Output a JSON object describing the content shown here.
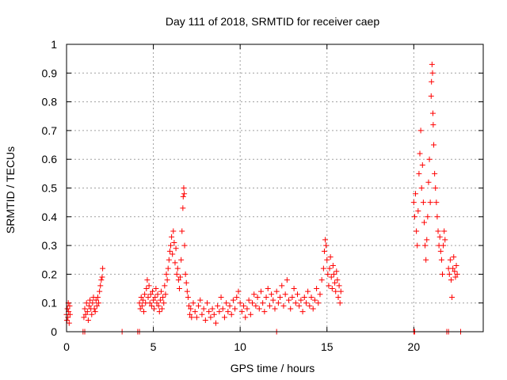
{
  "chart_data": {
    "type": "scatter",
    "title": "Day 111 of 2018, SRMTID for receiver caep",
    "xlabel": "GPS time / hours",
    "ylabel": "SRMTID / TECUs",
    "xlim": [
      0,
      24
    ],
    "ylim": [
      0,
      1
    ],
    "xticks": [
      0,
      5,
      10,
      15,
      20
    ],
    "xtick_labels": [
      "0",
      "5",
      "10",
      "15",
      "20"
    ],
    "yticks": [
      0,
      0.1,
      0.2,
      0.3,
      0.4,
      0.5,
      0.6,
      0.7,
      0.8,
      0.9,
      1
    ],
    "ytick_labels": [
      "0",
      "0.1",
      "0.2",
      "0.3",
      "0.4",
      "0.5",
      "0.6",
      "0.7",
      "0.8",
      "0.9",
      "1"
    ],
    "grid": true,
    "marker": "+",
    "color": "#ff0000",
    "series": [
      {
        "name": "SRMTID",
        "points": [
          [
            0.0,
            0.06
          ],
          [
            0.02,
            0.04
          ],
          [
            0.05,
            0.08
          ],
          [
            0.08,
            0.05
          ],
          [
            0.1,
            0.1
          ],
          [
            0.12,
            0.07
          ],
          [
            0.15,
            0.03
          ],
          [
            0.18,
            0.09
          ],
          [
            0.2,
            0.06
          ],
          [
            0.95,
            0.0
          ],
          [
            1.05,
            0.0
          ],
          [
            1.0,
            0.05
          ],
          [
            1.05,
            0.08
          ],
          [
            1.1,
            0.06
          ],
          [
            1.15,
            0.1
          ],
          [
            1.2,
            0.07
          ],
          [
            1.25,
            0.04
          ],
          [
            1.3,
            0.09
          ],
          [
            1.35,
            0.11
          ],
          [
            1.4,
            0.08
          ],
          [
            1.45,
            0.06
          ],
          [
            1.5,
            0.1
          ],
          [
            1.55,
            0.12
          ],
          [
            1.6,
            0.08
          ],
          [
            1.65,
            0.07
          ],
          [
            1.7,
            0.11
          ],
          [
            1.75,
            0.09
          ],
          [
            1.8,
            0.12
          ],
          [
            1.85,
            0.1
          ],
          [
            1.9,
            0.14
          ],
          [
            1.95,
            0.16
          ],
          [
            2.0,
            0.18
          ],
          [
            2.05,
            0.19
          ],
          [
            2.08,
            0.22
          ],
          [
            3.2,
            0.0
          ],
          [
            4.1,
            0.0
          ],
          [
            4.2,
            0.0
          ],
          [
            4.2,
            0.1
          ],
          [
            4.25,
            0.08
          ],
          [
            4.3,
            0.12
          ],
          [
            4.35,
            0.09
          ],
          [
            4.4,
            0.11
          ],
          [
            4.45,
            0.07
          ],
          [
            4.5,
            0.13
          ],
          [
            4.55,
            0.1
          ],
          [
            4.6,
            0.15
          ],
          [
            4.65,
            0.18
          ],
          [
            4.7,
            0.12
          ],
          [
            4.75,
            0.16
          ],
          [
            4.8,
            0.1
          ],
          [
            4.85,
            0.13
          ],
          [
            4.9,
            0.09
          ],
          [
            4.95,
            0.14
          ],
          [
            5.0,
            0.11
          ],
          [
            5.05,
            0.08
          ],
          [
            5.1,
            0.12
          ],
          [
            5.15,
            0.15
          ],
          [
            5.2,
            0.1
          ],
          [
            5.25,
            0.13
          ],
          [
            5.3,
            0.09
          ],
          [
            5.35,
            0.07
          ],
          [
            5.4,
            0.11
          ],
          [
            5.45,
            0.14
          ],
          [
            5.5,
            0.08
          ],
          [
            5.55,
            0.12
          ],
          [
            5.6,
            0.1
          ],
          [
            5.65,
            0.16
          ],
          [
            5.7,
            0.13
          ],
          [
            5.75,
            0.2
          ],
          [
            5.8,
            0.18
          ],
          [
            5.85,
            0.22
          ],
          [
            5.9,
            0.25
          ],
          [
            5.95,
            0.28
          ],
          [
            6.0,
            0.3
          ],
          [
            6.05,
            0.33
          ],
          [
            6.1,
            0.27
          ],
          [
            6.15,
            0.35
          ],
          [
            6.2,
            0.31
          ],
          [
            6.25,
            0.24
          ],
          [
            6.3,
            0.29
          ],
          [
            6.35,
            0.2
          ],
          [
            6.4,
            0.22
          ],
          [
            6.45,
            0.18
          ],
          [
            6.5,
            0.15
          ],
          [
            6.55,
            0.19
          ],
          [
            6.6,
            0.25
          ],
          [
            6.65,
            0.35
          ],
          [
            6.7,
            0.43
          ],
          [
            6.72,
            0.47
          ],
          [
            6.75,
            0.5
          ],
          [
            6.78,
            0.48
          ],
          [
            6.8,
            0.3
          ],
          [
            6.85,
            0.2
          ],
          [
            6.9,
            0.17
          ],
          [
            6.95,
            0.14
          ],
          [
            7.0,
            0.12
          ],
          [
            7.05,
            0.09
          ],
          [
            7.1,
            0.06
          ],
          [
            7.15,
            0.08
          ],
          [
            7.2,
            0.05
          ],
          [
            7.3,
            0.1
          ],
          [
            7.4,
            0.07
          ],
          [
            7.5,
            0.05
          ],
          [
            7.6,
            0.09
          ],
          [
            7.7,
            0.11
          ],
          [
            7.8,
            0.06
          ],
          [
            7.9,
            0.08
          ],
          [
            8.0,
            0.04
          ],
          [
            8.1,
            0.1
          ],
          [
            8.2,
            0.07
          ],
          [
            8.3,
            0.05
          ],
          [
            8.4,
            0.08
          ],
          [
            8.5,
            0.06
          ],
          [
            8.6,
            0.03
          ],
          [
            8.7,
            0.09
          ],
          [
            8.8,
            0.07
          ],
          [
            8.9,
            0.12
          ],
          [
            9.0,
            0.08
          ],
          [
            9.1,
            0.05
          ],
          [
            9.2,
            0.1
          ],
          [
            9.3,
            0.07
          ],
          [
            9.4,
            0.09
          ],
          [
            9.5,
            0.06
          ],
          [
            9.6,
            0.11
          ],
          [
            9.7,
            0.08
          ],
          [
            9.8,
            0.12
          ],
          [
            9.9,
            0.14
          ],
          [
            10.0,
            0.1
          ],
          [
            10.1,
            0.07
          ],
          [
            10.2,
            0.09
          ],
          [
            10.3,
            0.05
          ],
          [
            10.4,
            0.08
          ],
          [
            10.5,
            0.11
          ],
          [
            10.6,
            0.06
          ],
          [
            10.7,
            0.1
          ],
          [
            10.8,
            0.13
          ],
          [
            10.9,
            0.09
          ],
          [
            11.0,
            0.12
          ],
          [
            11.1,
            0.08
          ],
          [
            11.2,
            0.14
          ],
          [
            11.3,
            0.1
          ],
          [
            11.4,
            0.07
          ],
          [
            11.5,
            0.12
          ],
          [
            11.6,
            0.15
          ],
          [
            11.7,
            0.09
          ],
          [
            11.8,
            0.13
          ],
          [
            11.9,
            0.11
          ],
          [
            12.0,
            0.08
          ],
          [
            12.1,
            0.14
          ],
          [
            12.2,
            0.1
          ],
          [
            12.3,
            0.12
          ],
          [
            12.4,
            0.16
          ],
          [
            12.5,
            0.09
          ],
          [
            12.6,
            0.13
          ],
          [
            12.7,
            0.18
          ],
          [
            12.8,
            0.11
          ],
          [
            12.9,
            0.08
          ],
          [
            13.0,
            0.12
          ],
          [
            13.1,
            0.15
          ],
          [
            13.2,
            0.1
          ],
          [
            13.3,
            0.13
          ],
          [
            13.4,
            0.09
          ],
          [
            13.5,
            0.11
          ],
          [
            13.6,
            0.07
          ],
          [
            13.7,
            0.12
          ],
          [
            13.8,
            0.1
          ],
          [
            13.9,
            0.14
          ],
          [
            14.0,
            0.09
          ],
          [
            14.1,
            0.12
          ],
          [
            14.2,
            0.08
          ],
          [
            14.3,
            0.11
          ],
          [
            14.4,
            0.15
          ],
          [
            14.5,
            0.1
          ],
          [
            14.6,
            0.13
          ],
          [
            14.7,
            0.18
          ],
          [
            14.8,
            0.22
          ],
          [
            14.85,
            0.28
          ],
          [
            14.9,
            0.32
          ],
          [
            14.95,
            0.3
          ],
          [
            15.0,
            0.25
          ],
          [
            15.05,
            0.2
          ],
          [
            15.1,
            0.16
          ],
          [
            15.15,
            0.22
          ],
          [
            15.2,
            0.26
          ],
          [
            15.25,
            0.19
          ],
          [
            15.3,
            0.15
          ],
          [
            15.35,
            0.23
          ],
          [
            15.4,
            0.2
          ],
          [
            15.45,
            0.17
          ],
          [
            15.5,
            0.14
          ],
          [
            15.55,
            0.21
          ],
          [
            15.6,
            0.18
          ],
          [
            15.65,
            0.12
          ],
          [
            15.7,
            0.16
          ],
          [
            15.75,
            0.1
          ],
          [
            15.8,
            0.14
          ],
          [
            12.1,
            0.0
          ],
          [
            20.0,
            0.0
          ],
          [
            20.05,
            0.0
          ],
          [
            20.0,
            0.45
          ],
          [
            20.05,
            0.4
          ],
          [
            20.1,
            0.48
          ],
          [
            20.15,
            0.35
          ],
          [
            20.2,
            0.3
          ],
          [
            20.25,
            0.42
          ],
          [
            20.3,
            0.55
          ],
          [
            20.35,
            0.62
          ],
          [
            20.4,
            0.7
          ],
          [
            20.45,
            0.5
          ],
          [
            20.5,
            0.58
          ],
          [
            20.55,
            0.45
          ],
          [
            20.6,
            0.38
          ],
          [
            20.65,
            0.3
          ],
          [
            20.7,
            0.25
          ],
          [
            20.75,
            0.32
          ],
          [
            20.8,
            0.4
          ],
          [
            20.85,
            0.52
          ],
          [
            20.9,
            0.6
          ],
          [
            20.95,
            0.45
          ],
          [
            21.0,
            0.82
          ],
          [
            21.02,
            0.87
          ],
          [
            21.05,
            0.93
          ],
          [
            21.08,
            0.9
          ],
          [
            21.1,
            0.76
          ],
          [
            21.12,
            0.72
          ],
          [
            21.15,
            0.65
          ],
          [
            21.2,
            0.55
          ],
          [
            21.25,
            0.5
          ],
          [
            21.3,
            0.45
          ],
          [
            21.35,
            0.4
          ],
          [
            21.4,
            0.35
          ],
          [
            21.45,
            0.3
          ],
          [
            21.5,
            0.33
          ],
          [
            21.55,
            0.28
          ],
          [
            21.6,
            0.25
          ],
          [
            21.65,
            0.2
          ],
          [
            21.7,
            0.3
          ],
          [
            21.75,
            0.35
          ],
          [
            21.8,
            0.32
          ],
          [
            21.9,
            0.0
          ],
          [
            22.0,
            0.0
          ],
          [
            22.0,
            0.22
          ],
          [
            22.05,
            0.2
          ],
          [
            22.1,
            0.25
          ],
          [
            22.15,
            0.18
          ],
          [
            22.2,
            0.12
          ],
          [
            22.25,
            0.22
          ],
          [
            22.3,
            0.26
          ],
          [
            22.35,
            0.21
          ],
          [
            22.4,
            0.19
          ],
          [
            22.45,
            0.23
          ],
          [
            22.5,
            0.2
          ],
          [
            22.7,
            0.0
          ]
        ]
      }
    ]
  }
}
